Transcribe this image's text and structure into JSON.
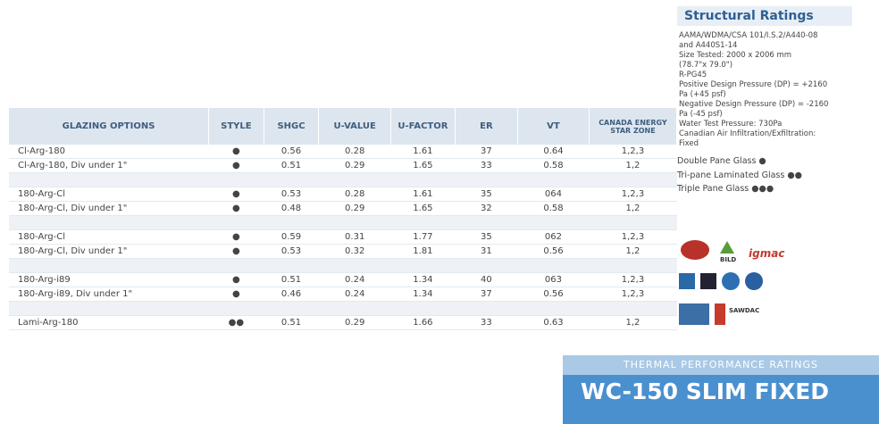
{
  "table": {
    "header": [
      "GLAZING OPTIONS",
      "STYLE",
      "SHGC",
      "U-VALUE",
      "U-FACTOR",
      "ER",
      "VT",
      "CANADA ENERGY STAR ZONE"
    ],
    "rows": [
      [
        "Cl-Arg-180",
        "●",
        "0.56",
        "0.28",
        "1.61",
        "37",
        "0.64",
        "1,2,3"
      ],
      [
        "Cl-Arg-180, Div under 1\"",
        "●",
        "0.51",
        "0.29",
        "1.65",
        "33",
        "0.58",
        "1,2"
      ],
      null,
      [
        "180-Arg-Cl",
        "●",
        "0.53",
        "0.28",
        "1.61",
        "35",
        "064",
        "1,2,3"
      ],
      [
        "180-Arg-Cl, Div under 1\"",
        "●",
        "0.48",
        "0.29",
        "1.65",
        "32",
        "0.58",
        "1,2"
      ],
      null,
      [
        "180-Arg-Cl",
        "●",
        "0.59",
        "0.31",
        "1.77",
        "35",
        "062",
        "1,2,3"
      ],
      [
        "180-Arg-Cl, Div under 1\"",
        "●",
        "0.53",
        "0.32",
        "1.81",
        "31",
        "0.56",
        "1,2"
      ],
      null,
      [
        "180-Arg-i89",
        "●",
        "0.51",
        "0.24",
        "1.34",
        "40",
        "063",
        "1,2,3"
      ],
      [
        "180-Arg-i89, Div under 1\"",
        "●",
        "0.46",
        "0.24",
        "1.34",
        "37",
        "0.56",
        "1,2,3"
      ],
      null,
      [
        "Lami-Arg-180",
        "●●",
        "0.51",
        "0.29",
        "1.66",
        "33",
        "0.63",
        "1,2"
      ]
    ]
  },
  "structural": {
    "title": "Structural Ratings",
    "lines": [
      "AAMA/WDMA/CSA 101/I.S.2/A440-08",
      "and A440S1-14",
      "Size Tested: 2000 x 2006 mm",
      "(78.7\"x 79.0\")",
      "R-PG45",
      "Positive Design Pressure (DP) = +2160",
      "Pa (+45 psf)",
      "Negative Design Pressure (DP) = -2160",
      "Pa (-45 psf)",
      "Water Test Pressure: 730Pa",
      "Canadian Air Infiltration/Exfiltration:",
      "Fixed"
    ],
    "legend": [
      "Double Pane Glass ●",
      "Tri-pane Laminated Glass ●●",
      "Triple Pane Glass ●●●"
    ]
  },
  "logos": [
    "BILD",
    "igmac",
    "SAWDAC"
  ],
  "footer": {
    "subtitle": "THERMAL PERFORMANCE RATINGS",
    "title": "WC-150 SLIM FIXED"
  }
}
